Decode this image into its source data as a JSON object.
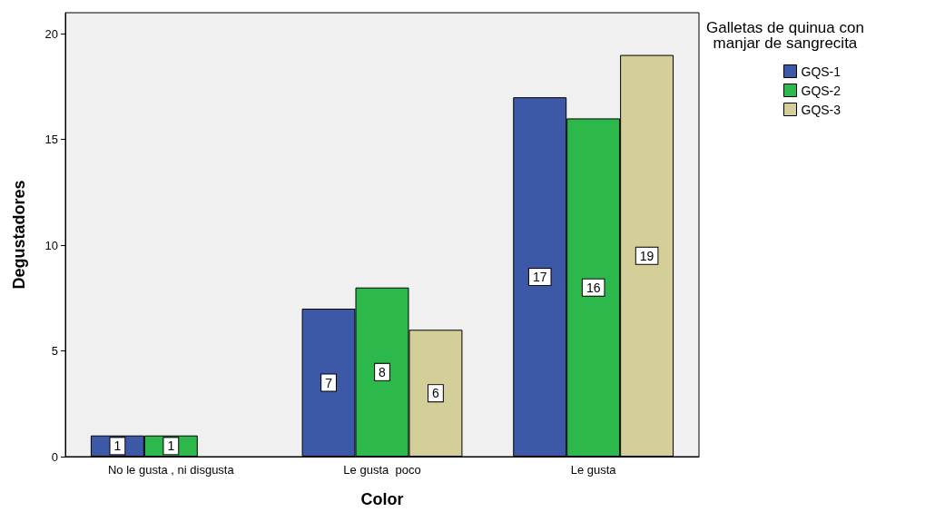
{
  "chart_data": {
    "type": "bar",
    "xlabel": "Color",
    "ylabel": "Degustadores",
    "legend_title": "Galletas de quinua con\nmanjar de sangrecita",
    "categories": [
      "No le gusta , ni disgusta",
      "Le gusta  poco",
      "Le gusta"
    ],
    "series": [
      {
        "name": "GQS-1",
        "color": "#3e58a8",
        "values": [
          1,
          7,
          17
        ]
      },
      {
        "name": "GQS-2",
        "color": "#2db84b",
        "values": [
          1,
          8,
          16
        ]
      },
      {
        "name": "GQS-3",
        "color": "#d4cf98",
        "values": [
          null,
          6,
          19
        ]
      }
    ],
    "ylim": [
      0,
      21
    ],
    "yticks": [
      0,
      5,
      10,
      15,
      20
    ],
    "grid": false,
    "legend": "top right",
    "data_labels": true
  }
}
